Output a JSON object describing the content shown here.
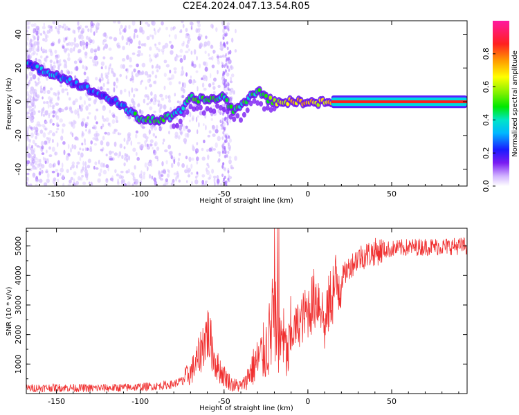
{
  "title": "C2E4.2024.047.13.54.R05",
  "colors": {
    "snr_line": "#f03030",
    "spectrogram_faint": "#c9a6ff",
    "spectrogram_dense": "#7a1bf2",
    "ridge_high": "#ff2020"
  },
  "chart_data": [
    {
      "type": "heatmap",
      "title": "",
      "xlabel": "Height of straight line (km)",
      "ylabel": "Frequency (Hz)",
      "xlim": [
        -168,
        95
      ],
      "ylim": [
        -50,
        48
      ],
      "xticks": [
        -150,
        -100,
        -50,
        0,
        50
      ],
      "yticks": [
        -40,
        -20,
        0,
        20,
        40
      ],
      "colorbar": {
        "label": "Normalized spectral amplitude",
        "range": [
          0,
          1
        ],
        "ticks": [
          0,
          0.2,
          0.4,
          0.6,
          0.8
        ],
        "colormap": "rainbow (white-purple-blue-cyan-green-yellow-red-magenta)"
      },
      "ridge": {
        "description": "dominant frequency track",
        "x": [
          -168,
          -150,
          -130,
          -115,
          -100,
          -90,
          -85,
          -80,
          -75,
          -70,
          -60,
          -50,
          -45,
          -40,
          -35,
          -30,
          -25,
          -20,
          -10,
          0,
          5,
          10,
          15,
          20,
          30,
          50,
          70,
          95
        ],
        "y": [
          22,
          16,
          7,
          0,
          -10,
          -11,
          -10,
          -8,
          -5,
          2,
          1,
          3,
          -5,
          -3,
          3,
          7,
          2,
          0,
          0,
          0,
          -1,
          0,
          -1,
          0,
          0,
          0,
          0,
          0
        ],
        "amplitude": [
          0.2,
          0.22,
          0.18,
          0.15,
          0.38,
          0.42,
          0.35,
          0.3,
          0.3,
          0.38,
          0.4,
          0.3,
          0.4,
          0.38,
          0.35,
          0.35,
          0.4,
          0.5,
          0.6,
          0.7,
          0.55,
          0.6,
          0.6,
          0.9,
          0.95,
          0.95,
          0.95,
          0.95
        ]
      }
    },
    {
      "type": "line",
      "title": "",
      "xlabel": "Height of straight line (km)",
      "ylabel": "SNR (10 * v/v)",
      "xlim": [
        -168,
        95
      ],
      "ylim": [
        0,
        5600
      ],
      "xticks": [
        -150,
        -100,
        -50,
        0,
        50
      ],
      "yticks": [
        1000,
        2000,
        3000,
        4000,
        5000
      ],
      "series": [
        {
          "x": [
            -168,
            -150,
            -130,
            -110,
            -90,
            -80,
            -75,
            -70,
            -66,
            -63,
            -60,
            -57,
            -55,
            -50,
            -45,
            -40,
            -37,
            -35,
            -30,
            -25,
            -22,
            -20,
            -18,
            -15,
            -12,
            -10,
            -5,
            0,
            5,
            8,
            10,
            12,
            15,
            20,
            25,
            30,
            40,
            50,
            60,
            70,
            80,
            95
          ],
          "y": [
            180,
            200,
            180,
            200,
            250,
            320,
            450,
            700,
            1100,
            1600,
            2100,
            1500,
            1000,
            600,
            300,
            250,
            400,
            700,
            1100,
            1500,
            2000,
            2700,
            2000,
            1800,
            1200,
            2000,
            2400,
            2800,
            3300,
            3100,
            2100,
            2900,
            3500,
            3900,
            4300,
            4600,
            4800,
            4900,
            4950,
            4970,
            4980,
            5000
          ]
        }
      ]
    }
  ]
}
